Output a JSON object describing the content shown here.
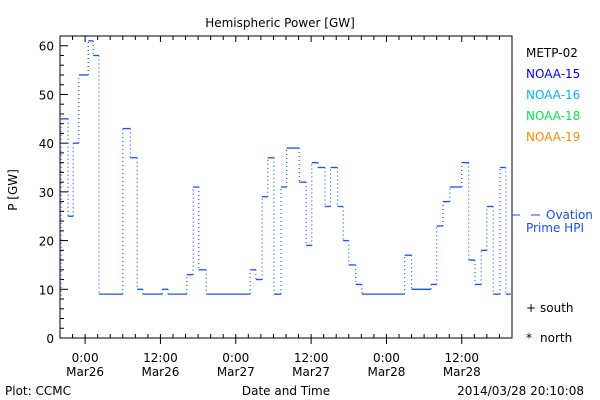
{
  "chart_data": {
    "type": "line",
    "title": "Hemispheric Power [GW]",
    "xlabel": "Date and Time",
    "ylabel": "P [GW]",
    "x_units": "hours since 2014-03-26 00:00",
    "xlim": [
      -4,
      68
    ],
    "ylim": [
      0,
      62
    ],
    "y_ticks": [
      0,
      10,
      20,
      30,
      40,
      50,
      60
    ],
    "x_ticks": [
      {
        "hour": 0,
        "time": "0:00",
        "date": "Mar26"
      },
      {
        "hour": 12,
        "time": "12:00",
        "date": "Mar26"
      },
      {
        "hour": 24,
        "time": "0:00",
        "date": "Mar27"
      },
      {
        "hour": 36,
        "time": "12:00",
        "date": "Mar27"
      },
      {
        "hour": 48,
        "time": "0:00",
        "date": "Mar28"
      },
      {
        "hour": 60,
        "time": "12:00",
        "date": "Mar28"
      }
    ],
    "grid": false,
    "legend_position": "right",
    "legend": [
      {
        "label": "METP-02",
        "color": "#000000"
      },
      {
        "label": "NOAA-15",
        "color": "#0000ff"
      },
      {
        "label": "NOAA-16",
        "color": "#00b4ff"
      },
      {
        "label": "NOAA-18",
        "color": "#00e650"
      },
      {
        "label": "NOAA-19",
        "color": "#ff8c00"
      }
    ],
    "series": [
      {
        "name": "Ovation Prime HPI",
        "label_line1": "Ovation",
        "label_line2": "Prime HPI",
        "color": "#1050ff",
        "style": "step",
        "breakpoints": [
          -3.8,
          -2.7,
          -1.9,
          -1.0,
          0.5,
          1.3,
          2.2,
          6.0,
          7.2,
          8.3,
          9.2,
          12.3,
          13.2,
          16.2,
          17.2,
          18.1,
          19.3,
          26.3,
          27.2,
          28.2,
          29.1,
          30.1,
          31.2,
          32.1,
          34.1,
          35.2,
          36.1,
          37.1,
          38.2,
          39.1,
          40.2,
          41.1,
          42.0,
          43.1,
          44.1,
          50.9,
          52.0,
          55.1,
          56.0,
          57.0,
          58.1,
          60.0,
          61.1,
          62.1,
          63.1,
          64.0,
          65.0,
          66.1,
          67.0,
          67.8
        ],
        "values": [
          45,
          25,
          40,
          54,
          61,
          58,
          9,
          43,
          37,
          10,
          9,
          10,
          9,
          13,
          31,
          14,
          9,
          14,
          12,
          29,
          37,
          9,
          31,
          39,
          32,
          19,
          36,
          35,
          27,
          35,
          27,
          20,
          15,
          11,
          9,
          17,
          10,
          11,
          23,
          28,
          31,
          36,
          16,
          11,
          18,
          27,
          9,
          35,
          9
        ]
      }
    ],
    "markers": [
      {
        "symbol": "+",
        "label": "south"
      },
      {
        "symbol": "*",
        "label": "north"
      }
    ],
    "footer_left": "Plot: CCMC",
    "footer_right": "2014/03/28 20:10:08"
  }
}
